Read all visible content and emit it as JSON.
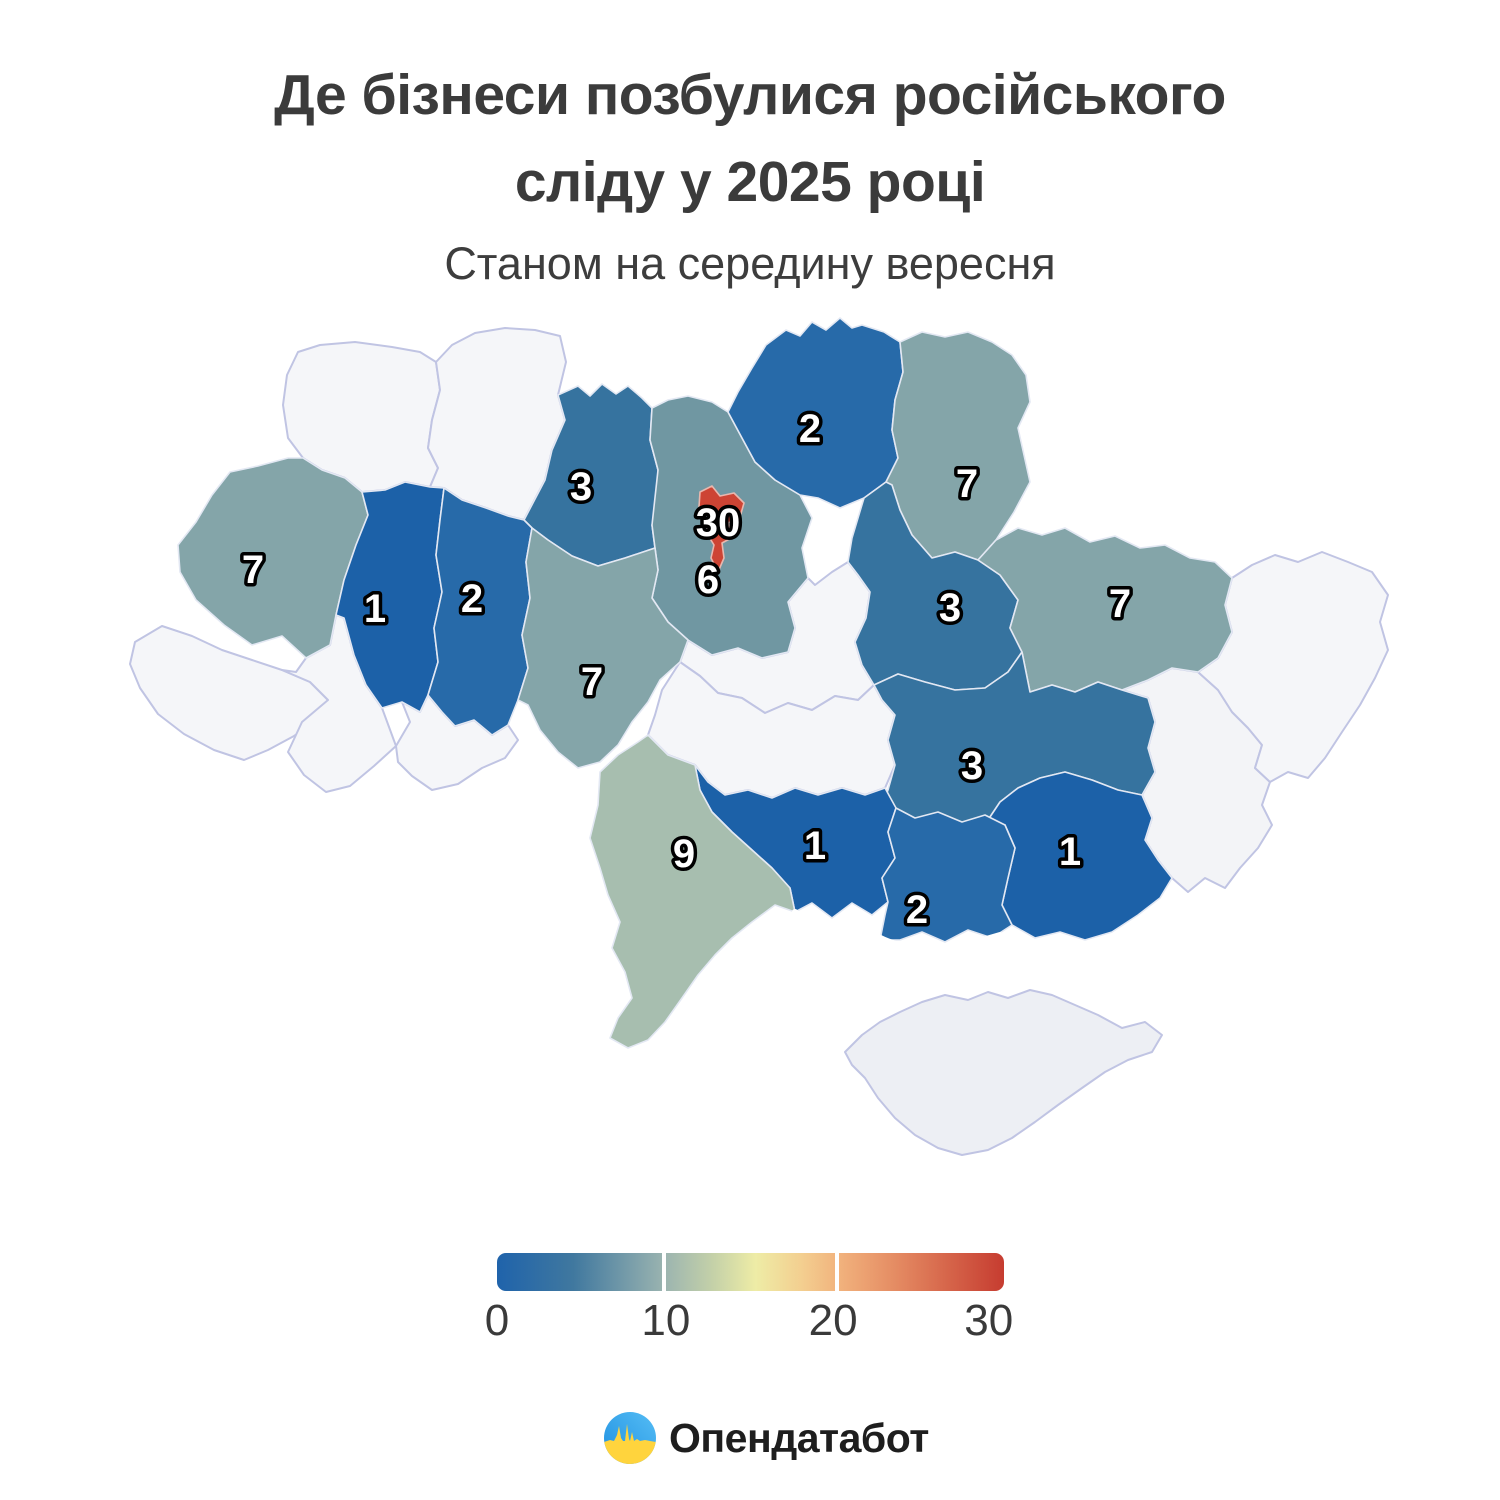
{
  "title": {
    "line1": "Де бізнеси позбулися російського",
    "line2": "сліду у 2025 році",
    "subtitle": "Станом на середину вересня"
  },
  "chart_data": {
    "type": "choropleth",
    "map": "ukraine-oblasts",
    "title": "Де бізнеси позбулися російського сліду у 2025 році",
    "subtitle": "Станом на середину вересня",
    "colorbar": {
      "min": 0,
      "max": 30,
      "tick_labels": [
        "0",
        "10",
        "20",
        "30"
      ],
      "gradient": [
        {
          "pos": 0,
          "color": "#1f63ab"
        },
        {
          "pos": 15,
          "color": "#40789f"
        },
        {
          "pos": 33,
          "color": "#9bb4b0"
        },
        {
          "pos": 43,
          "color": "#c6d2a8"
        },
        {
          "pos": 51,
          "color": "#eeeca6"
        },
        {
          "pos": 60,
          "color": "#f3cf90"
        },
        {
          "pos": 67,
          "color": "#f2b47e"
        },
        {
          "pos": 79,
          "color": "#e48a62"
        },
        {
          "pos": 100,
          "color": "#c63c30"
        }
      ],
      "divider_positions_pct": [
        33,
        67
      ]
    },
    "no_data_color": "#f5f6f9",
    "no_data_border": "#c0c4e3",
    "region_border": "#e3e8f3",
    "label_style": {
      "fill": "#ffffff",
      "outline": "#000000"
    },
    "regions": [
      {
        "id": "volyn",
        "value": null,
        "color": "#f5f6f9",
        "border": "#c0c4e3"
      },
      {
        "id": "rivne",
        "value": null,
        "color": "#f5f6f9",
        "border": "#c0c4e3"
      },
      {
        "id": "zakarpattia",
        "value": null,
        "color": "#f5f6f9",
        "border": "#c0c4e3"
      },
      {
        "id": "ivano-frankivsk",
        "value": null,
        "color": "#f5f6f9",
        "border": "#c0c4e3"
      },
      {
        "id": "chernivtsi",
        "value": null,
        "color": "#f5f6f9",
        "border": "#c0c4e3"
      },
      {
        "id": "cherkasy",
        "value": null,
        "color": "#f5f6f9",
        "border": "#c0c4e3"
      },
      {
        "id": "kirovohrad",
        "value": null,
        "color": "#f5f6f9",
        "border": "#c0c4e3"
      },
      {
        "id": "donetsk",
        "value": null,
        "color": "#f3f4f7",
        "border": "#c0c4e3"
      },
      {
        "id": "luhansk",
        "value": null,
        "color": "#f5f6f9",
        "border": "#c0c4e3"
      },
      {
        "id": "crimea",
        "value": null,
        "color": "#edeff4",
        "border": "#c0c4e3"
      },
      {
        "id": "lviv",
        "value": 7,
        "color": "#84a5a9"
      },
      {
        "id": "zhytomyr",
        "value": 3,
        "color": "#36739f"
      },
      {
        "id": "kyiv-oblast",
        "value": 6,
        "color": "#7097a2"
      },
      {
        "id": "chernihiv",
        "value": 2,
        "color": "#276aa9"
      },
      {
        "id": "sumy",
        "value": 7,
        "color": "#84a5a9"
      },
      {
        "id": "ternopil",
        "value": 1,
        "color": "#1c61a8"
      },
      {
        "id": "khmelnytskyi",
        "value": 2,
        "color": "#276aa9"
      },
      {
        "id": "vinnytsia",
        "value": 7,
        "color": "#84a5a9"
      },
      {
        "id": "poltava",
        "value": 3,
        "color": "#36739f"
      },
      {
        "id": "kharkiv",
        "value": 7,
        "color": "#84a5a9"
      },
      {
        "id": "dnipropetrovsk",
        "value": 3,
        "color": "#36739f"
      },
      {
        "id": "zaporizhzhia",
        "value": 1,
        "color": "#1c61a8"
      },
      {
        "id": "mykolaiv",
        "value": 1,
        "color": "#1c61a8"
      },
      {
        "id": "kherson",
        "value": 2,
        "color": "#276aa9"
      },
      {
        "id": "odesa",
        "value": 9,
        "color": "#a7beaf"
      },
      {
        "id": "kyiv-city",
        "value": 30,
        "color": "#cd4434",
        "border": "#e8b7ae"
      }
    ]
  },
  "footer": {
    "brand": "Опендатабот",
    "logo_colors": {
      "blue_top": "#45b1f2",
      "blue_deep": "#1e8fe0",
      "yellow": "#ffd43d"
    }
  }
}
